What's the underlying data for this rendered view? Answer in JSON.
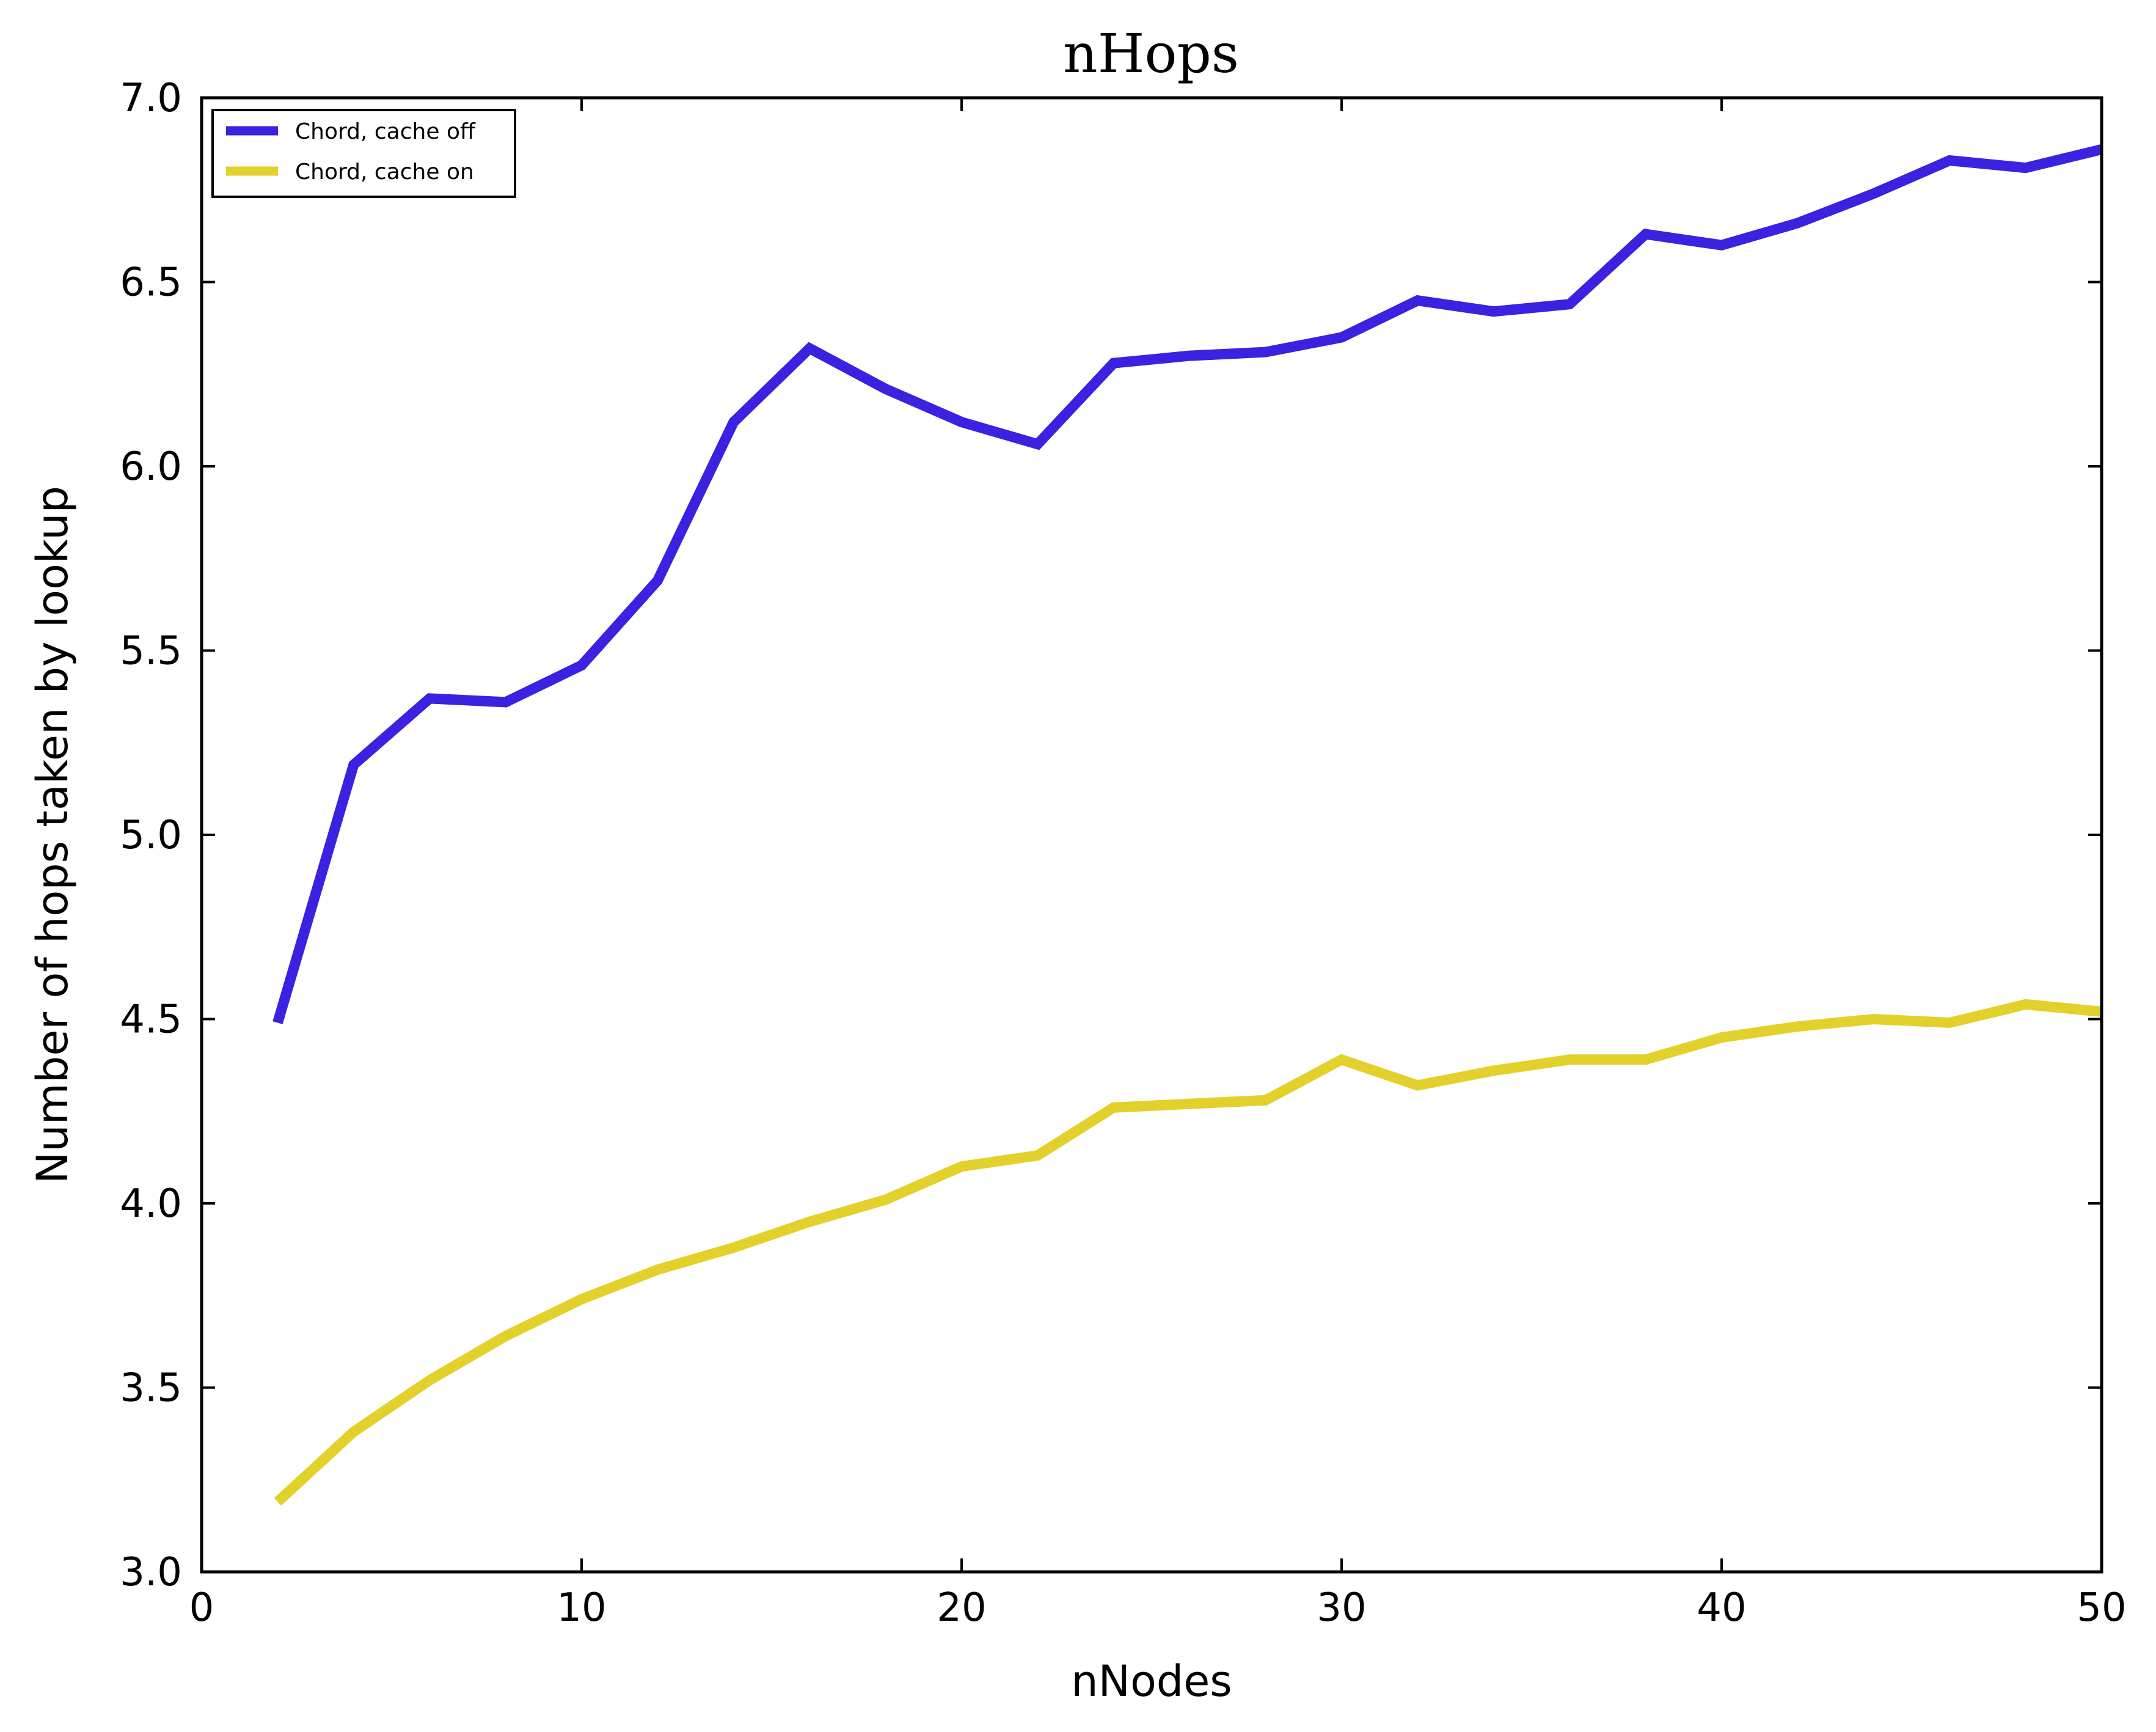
{
  "chart_data": {
    "type": "line",
    "title": "nHops",
    "xlabel": "nNodes",
    "ylabel": "Number of hops taken by lookup",
    "xlim": [
      0,
      50
    ],
    "ylim": [
      3.0,
      7.0
    ],
    "xticks": [
      "0",
      "10",
      "20",
      "30",
      "40",
      "50"
    ],
    "yticks": [
      "3.0",
      "3.5",
      "4.0",
      "4.5",
      "5.0",
      "5.5",
      "6.0",
      "6.5",
      "7.0"
    ],
    "grid": false,
    "legend_position": "top-left",
    "x": [
      2,
      4,
      6,
      8,
      10,
      12,
      14,
      16,
      18,
      20,
      22,
      24,
      26,
      28,
      30,
      32,
      34,
      36,
      38,
      40,
      42,
      44,
      46,
      48,
      50
    ],
    "series": [
      {
        "name": "Chord, cache off",
        "color": "#3a22e0",
        "values": [
          4.49,
          5.19,
          5.37,
          5.36,
          5.46,
          5.69,
          6.12,
          6.32,
          6.21,
          6.12,
          6.06,
          6.28,
          6.3,
          6.31,
          6.35,
          6.45,
          6.42,
          6.44,
          6.63,
          6.6,
          6.66,
          6.74,
          6.83,
          6.81,
          6.86
        ]
      },
      {
        "name": "Chord, cache on",
        "color": "#e2d12b",
        "values": [
          3.19,
          3.38,
          3.52,
          3.64,
          3.74,
          3.82,
          3.88,
          3.95,
          4.01,
          4.1,
          4.13,
          4.26,
          4.27,
          4.28,
          4.39,
          4.32,
          4.36,
          4.39,
          4.39,
          4.45,
          4.48,
          4.5,
          4.49,
          4.54,
          4.52
        ]
      }
    ]
  }
}
